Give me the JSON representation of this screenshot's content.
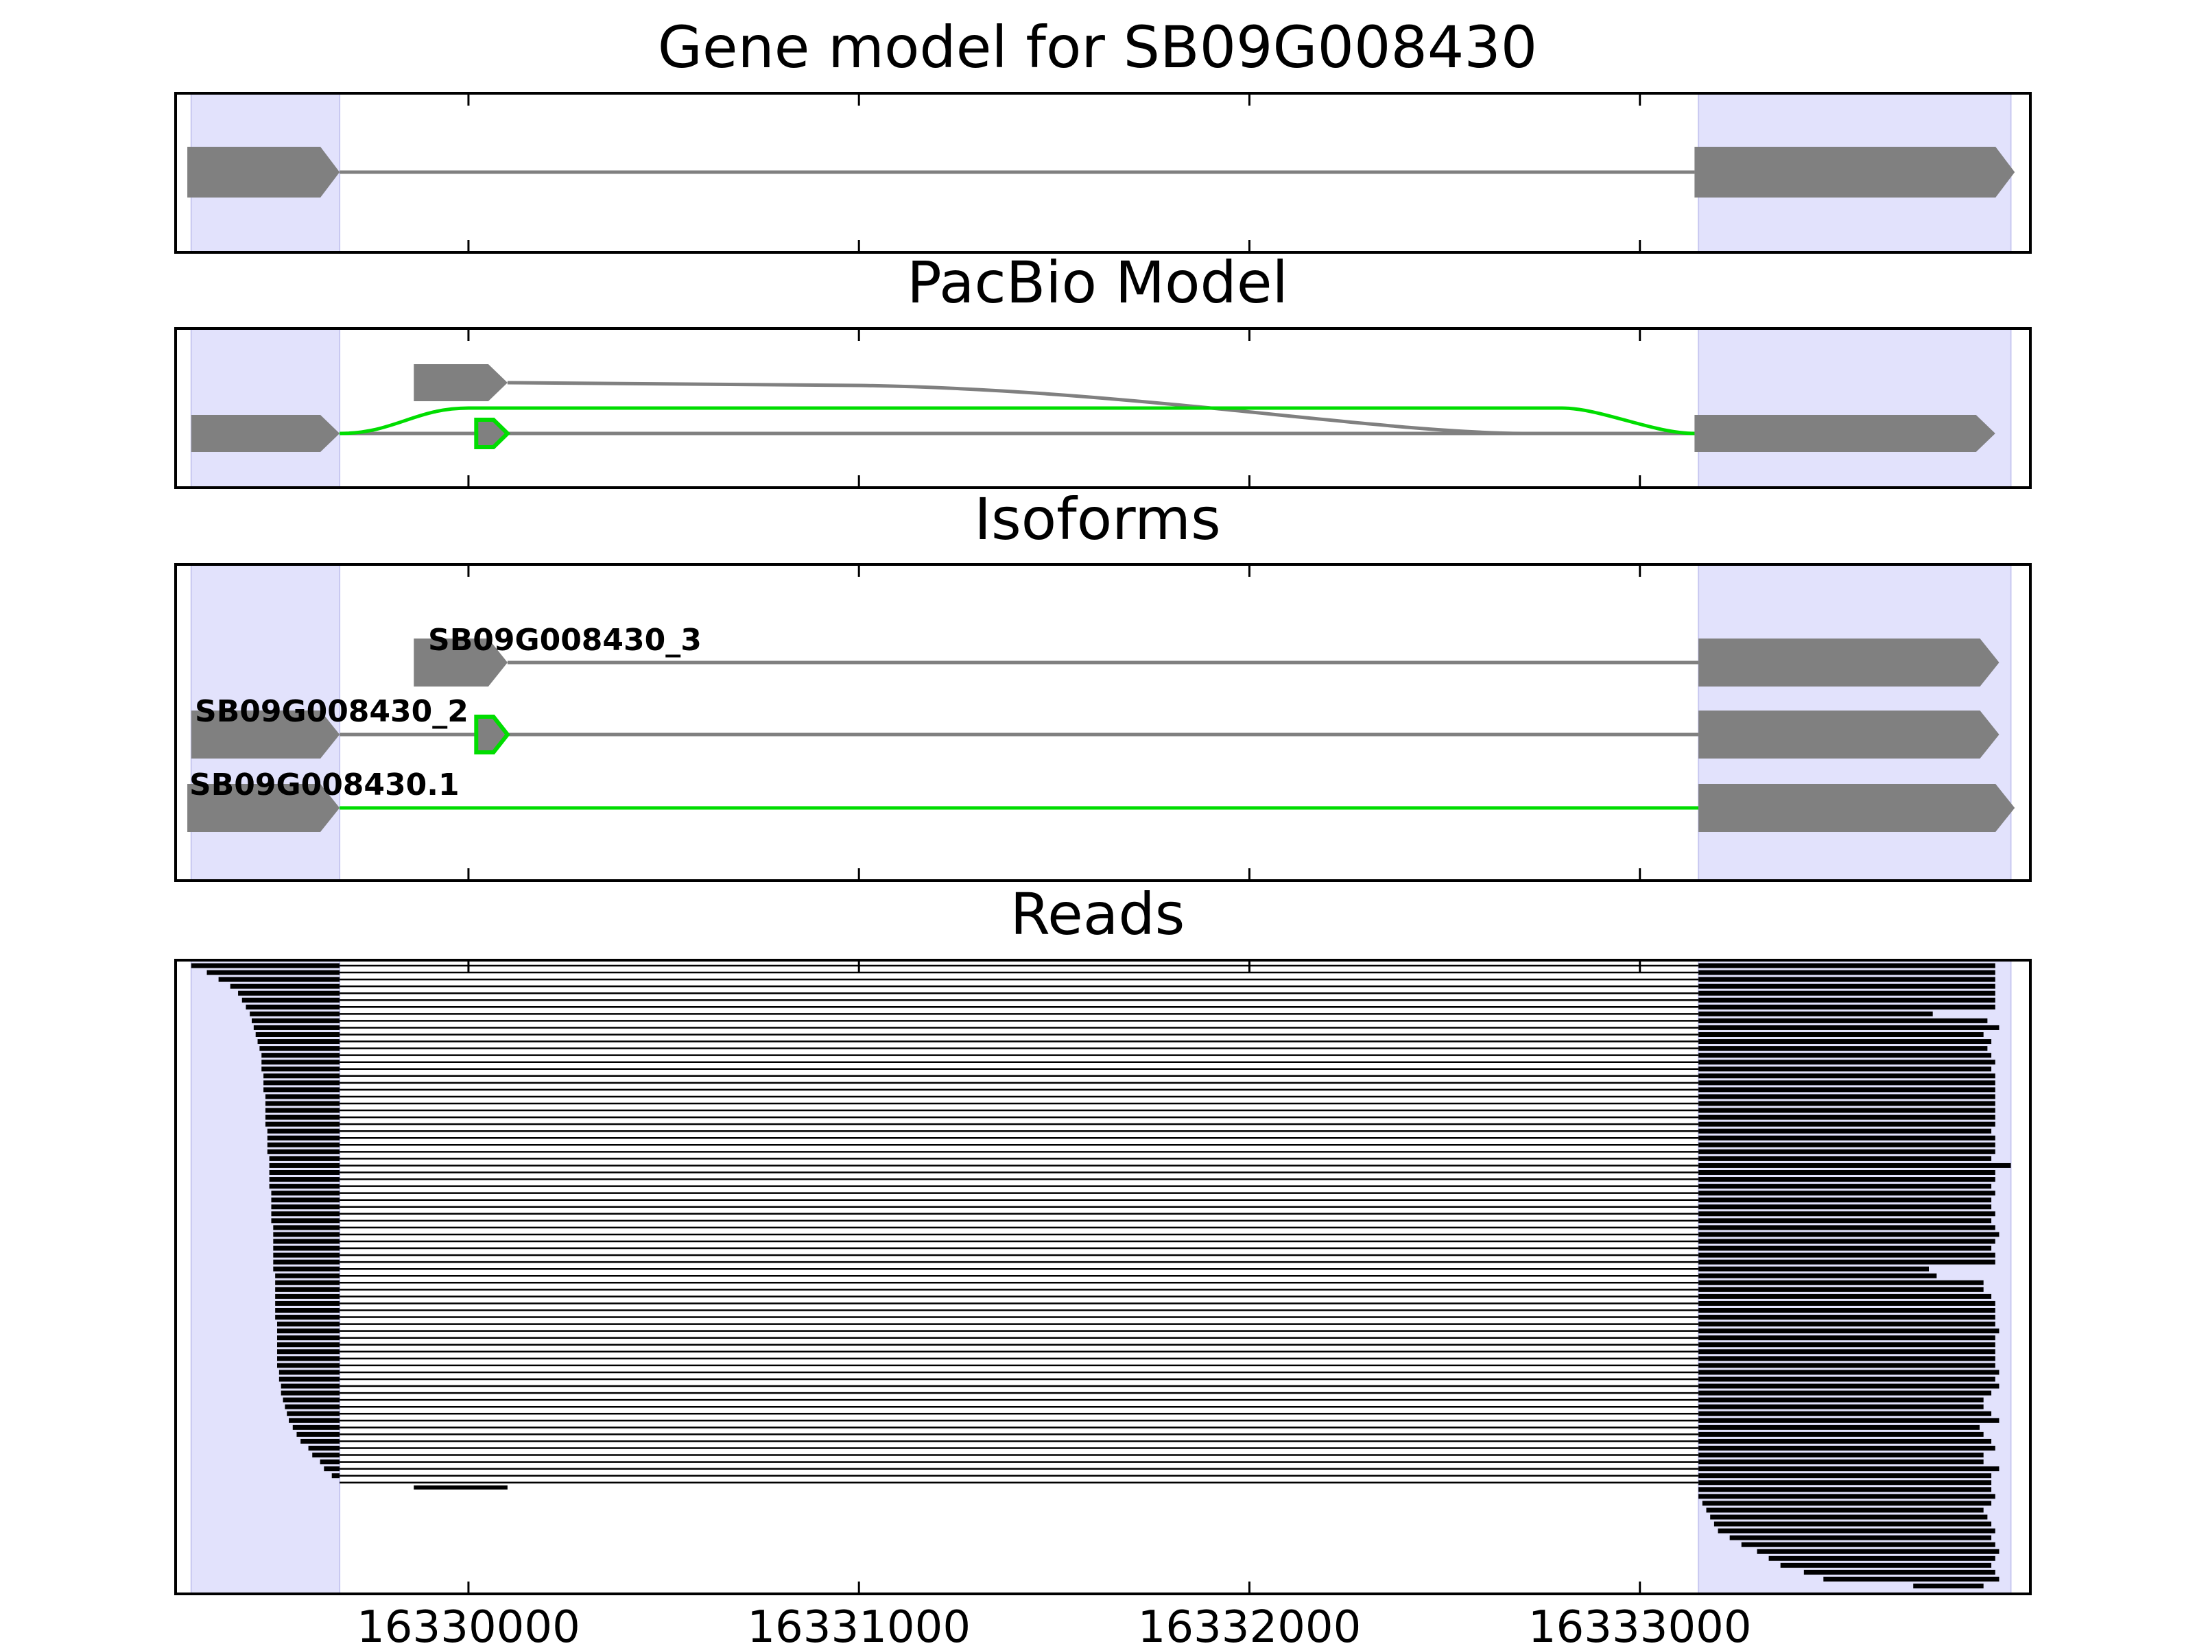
{
  "chart_data": {
    "type": "gene-track",
    "xlim": [
      16329250,
      16334000
    ],
    "xticks": [
      16330000,
      16331000,
      16332000,
      16333000
    ],
    "xtick_labels": [
      "16330000",
      "16331000",
      "16332000",
      "16333000"
    ],
    "highlight_regions": [
      [
        16329290,
        16329670
      ],
      [
        16333150,
        16333950
      ]
    ],
    "colors": {
      "exon": "#808080",
      "intron": "#808080",
      "novel": "#00dd00",
      "highlight": "#e2e2fc",
      "reads": "#000000"
    },
    "panels": [
      {
        "title": "Gene model for SB09G008430",
        "exons": [
          [
            16329280,
            16329670
          ],
          [
            16333140,
            16333960
          ]
        ]
      },
      {
        "title": "PacBio Model",
        "isoforms": [
          {
            "exons": [
              [
                16329860,
                16330100
              ],
              [
                16333140,
                16333910
              ]
            ],
            "intron_color": "gray"
          },
          {
            "exons": [
              [
                16329290,
                16329670
              ],
              [
                16330020,
                16330100
              ],
              [
                16333140,
                16333910
              ]
            ],
            "novel_exon": 1,
            "intron_color": "gray"
          },
          {
            "exons": [
              [
                16329290,
                16329670
              ],
              [
                16333140,
                16333910
              ]
            ],
            "intron_color": "green"
          }
        ]
      },
      {
        "title": "Isoforms",
        "isoforms": [
          {
            "label": "SB09G008430_3",
            "exons": [
              [
                16329860,
                16330100
              ],
              [
                16333150,
                16333920
              ]
            ],
            "intron_color": "gray"
          },
          {
            "label": "SB09G008430_2",
            "exons": [
              [
                16329290,
                16329670
              ],
              [
                16330020,
                16330100
              ],
              [
                16333150,
                16333920
              ]
            ],
            "novel_exon": 1,
            "intron_color": "gray"
          },
          {
            "label": "SB09G008430.1",
            "exons": [
              [
                16329280,
                16329670
              ],
              [
                16333150,
                16333960
              ]
            ],
            "intron_color": "green"
          }
        ]
      },
      {
        "title": "Reads",
        "spliced_read_count": 76,
        "unspliced_read_count": 15,
        "read_starts": [
          16329290,
          16329330,
          16329360,
          16329390,
          16329410,
          16329420,
          16329430,
          16329440,
          16329445,
          16329450,
          16329455,
          16329460,
          16329465,
          16329470,
          16329470,
          16329470,
          16329475,
          16329475,
          16329475,
          16329480,
          16329480,
          16329480,
          16329480,
          16329480,
          16329485,
          16329485,
          16329485,
          16329485,
          16329490,
          16329490,
          16329490,
          16329490,
          16329490,
          16329495,
          16329495,
          16329495,
          16329495,
          16329495,
          16329500,
          16329500,
          16329500,
          16329500,
          16329500,
          16329500,
          16329500,
          16329505,
          16329505,
          16329505,
          16329505,
          16329505,
          16329505,
          16329505,
          16329510,
          16329510,
          16329510,
          16329510,
          16329510,
          16329510,
          16329510,
          16329515,
          16329515,
          16329520,
          16329520,
          16329525,
          16329530,
          16329535,
          16329540,
          16329550,
          16329560,
          16329570,
          16329590,
          16329600,
          16329620,
          16329630,
          16329650,
          16329670
        ],
        "read_ends": [
          16333910,
          16333910,
          16333910,
          16333910,
          16333910,
          16333910,
          16333910,
          16333750,
          16333890,
          16333920,
          16333880,
          16333900,
          16333890,
          16333900,
          16333910,
          16333900,
          16333910,
          16333910,
          16333910,
          16333910,
          16333910,
          16333910,
          16333910,
          16333910,
          16333900,
          16333910,
          16333910,
          16333910,
          16333900,
          16333950,
          16333910,
          16333910,
          16333900,
          16333910,
          16333900,
          16333900,
          16333910,
          16333900,
          16333910,
          16333920,
          16333910,
          16333900,
          16333910,
          16333910,
          16333740,
          16333760,
          16333880,
          16333880,
          16333900,
          16333910,
          16333910,
          16333910,
          16333910,
          16333920,
          16333910,
          16333910,
          16333910,
          16333910,
          16333910,
          16333920,
          16333910,
          16333920,
          16333900,
          16333880,
          16333880,
          16333900,
          16333920,
          16333870,
          16333880,
          16333900,
          16333910,
          16333880,
          16333880,
          16333920,
          16333900,
          16333900
        ],
        "unspliced_reads": [
          [
            16333150,
            16333900
          ],
          [
            16333150,
            16333910
          ],
          [
            16333160,
            16333900
          ],
          [
            16333170,
            16333880
          ],
          [
            16333180,
            16333890
          ],
          [
            16333190,
            16333900
          ],
          [
            16333200,
            16333910
          ],
          [
            16333230,
            16333900
          ],
          [
            16333260,
            16333910
          ],
          [
            16333300,
            16333920
          ],
          [
            16333330,
            16333910
          ],
          [
            16333360,
            16333900
          ],
          [
            16333420,
            16333910
          ],
          [
            16333470,
            16333920
          ],
          [
            16333700,
            16333880
          ]
        ],
        "stray_segment": [
          16329860,
          16330100
        ]
      }
    ]
  }
}
